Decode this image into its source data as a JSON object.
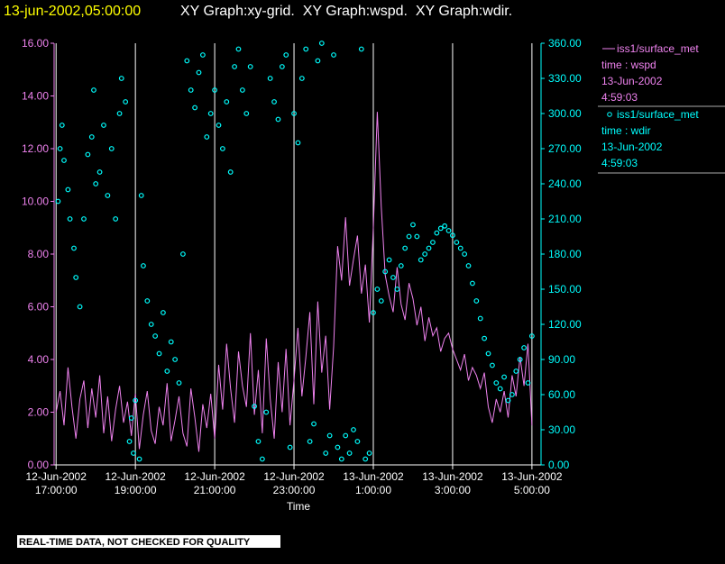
{
  "chart_data": {
    "type": "xy",
    "title_time": "13-jun-2002,05:00:00",
    "title": "XY Graph:xy-grid.  XY Graph:wspd.  XY Graph:wdir.",
    "x_label": "Time",
    "note": "REAL-TIME DATA, NOT CHECKED FOR QUALITY",
    "xlim": [
      -0.05,
      12.23
    ],
    "xticks": [
      {
        "value": 0,
        "label": "12-Jun-2002\n17:00:00"
      },
      {
        "value": 2,
        "label": "12-Jun-2002\n19:00:00"
      },
      {
        "value": 4,
        "label": "12-Jun-2002\n21:00:00"
      },
      {
        "value": 6,
        "label": "12-Jun-2002\n23:00:00"
      },
      {
        "value": 8,
        "label": "13-Jun-2002\n1:00:00"
      },
      {
        "value": 10,
        "label": "13-Jun-2002\n3:00:00"
      },
      {
        "value": 12,
        "label": "13-Jun-2002\n5:00:00"
      }
    ],
    "ylim": [
      0,
      16
    ],
    "yticks": [
      {
        "value": 0,
        "label": "0.00"
      },
      {
        "value": 2,
        "label": "2.00"
      },
      {
        "value": 4,
        "label": "4.00"
      },
      {
        "value": 6,
        "label": "6.00"
      },
      {
        "value": 8,
        "label": "8.00"
      },
      {
        "value": 10,
        "label": "10.00"
      },
      {
        "value": 12,
        "label": "12.00"
      },
      {
        "value": 14,
        "label": "14.00"
      },
      {
        "value": 16,
        "label": "16.00"
      }
    ],
    "y2lim": [
      0,
      360
    ],
    "y2ticks": [
      {
        "value": 0,
        "label": "0.00"
      },
      {
        "value": 30,
        "label": "30.00"
      },
      {
        "value": 60,
        "label": "60.00"
      },
      {
        "value": 90,
        "label": "90.00"
      },
      {
        "value": 120,
        "label": "120.00"
      },
      {
        "value": 150,
        "label": "150.00"
      },
      {
        "value": 180,
        "label": "180.00"
      },
      {
        "value": 210,
        "label": "210.00"
      },
      {
        "value": 240,
        "label": "240.00"
      },
      {
        "value": 270,
        "label": "270.00"
      },
      {
        "value": 300,
        "label": "300.00"
      },
      {
        "value": 330,
        "label": "330.00"
      },
      {
        "value": 360,
        "label": "360.00"
      }
    ],
    "grid": true,
    "series": [
      {
        "name": "iss1/surface_met",
        "kind": "line",
        "color": "#ee82ee",
        "legend_text": [
          "time : wspd",
          "13-Jun-2002",
          "4:59:03"
        ],
        "x": [
          0.0,
          0.1,
          0.2,
          0.3,
          0.4,
          0.5,
          0.6,
          0.7,
          0.8,
          0.9,
          1.0,
          1.1,
          1.2,
          1.3,
          1.4,
          1.5,
          1.6,
          1.7,
          1.8,
          1.9,
          2.0,
          2.1,
          2.2,
          2.3,
          2.4,
          2.5,
          2.6,
          2.7,
          2.8,
          2.9,
          3.0,
          3.1,
          3.2,
          3.3,
          3.4,
          3.5,
          3.6,
          3.7,
          3.8,
          3.9,
          4.0,
          4.1,
          4.2,
          4.3,
          4.4,
          4.5,
          4.6,
          4.7,
          4.8,
          4.9,
          5.0,
          5.1,
          5.2,
          5.3,
          5.4,
          5.5,
          5.6,
          5.7,
          5.8,
          5.9,
          6.0,
          6.1,
          6.2,
          6.3,
          6.4,
          6.5,
          6.6,
          6.7,
          6.8,
          6.9,
          7.0,
          7.1,
          7.2,
          7.3,
          7.4,
          7.5,
          7.6,
          7.7,
          7.8,
          7.9,
          8.0,
          8.1,
          8.2,
          8.3,
          8.4,
          8.5,
          8.6,
          8.7,
          8.8,
          8.9,
          9.0,
          9.1,
          9.2,
          9.3,
          9.4,
          9.5,
          9.6,
          9.7,
          9.8,
          9.9,
          10.0,
          10.1,
          10.2,
          10.3,
          10.4,
          10.5,
          10.6,
          10.7,
          10.8,
          10.9,
          11.0,
          11.1,
          11.2,
          11.3,
          11.4,
          11.5,
          11.6,
          11.7,
          11.8,
          11.9,
          12.0
        ],
        "values": [
          2.0,
          2.8,
          1.5,
          3.7,
          2.2,
          1.0,
          2.5,
          3.2,
          1.4,
          2.9,
          1.8,
          3.4,
          1.2,
          2.6,
          0.9,
          2.1,
          3.0,
          1.6,
          2.4,
          1.1,
          2.7,
          0.6,
          1.9,
          2.8,
          1.3,
          0.8,
          2.2,
          1.5,
          3.1,
          0.9,
          1.7,
          2.6,
          1.2,
          0.7,
          2.9,
          1.8,
          0.5,
          2.3,
          1.4,
          2.7,
          1.0,
          3.8,
          2.1,
          4.6,
          2.9,
          1.6,
          4.3,
          3.0,
          2.2,
          5.0,
          1.9,
          3.6,
          1.2,
          4.8,
          2.5,
          1.0,
          3.9,
          2.0,
          4.4,
          1.5,
          3.2,
          5.2,
          2.6,
          4.1,
          5.8,
          2.3,
          6.2,
          3.5,
          4.9,
          2.1,
          4.5,
          8.3,
          7.0,
          9.4,
          6.8,
          7.8,
          8.7,
          6.5,
          7.6,
          5.4,
          9.0,
          13.4,
          9.8,
          7.2,
          6.4,
          5.8,
          7.5,
          6.1,
          5.5,
          6.9,
          6.3,
          5.3,
          6.0,
          4.7,
          5.6,
          4.9,
          5.2,
          4.3,
          4.8,
          5.0,
          4.4,
          4.0,
          3.6,
          4.2,
          3.2,
          3.7,
          3.4,
          2.9,
          3.5,
          2.2,
          1.6,
          2.5,
          2.0,
          2.8,
          1.8,
          3.4,
          2.6,
          4.1,
          3.0,
          4.6,
          1.5
        ]
      },
      {
        "name": "iss1/surface_met",
        "kind": "scatter",
        "axis": "y2",
        "color": "#00ffff",
        "legend_text": [
          "time : wdir",
          "13-Jun-2002",
          "4:59:03"
        ],
        "x": [
          0.05,
          0.1,
          0.15,
          0.2,
          0.3,
          0.35,
          0.45,
          0.5,
          0.6,
          0.7,
          0.8,
          0.9,
          0.95,
          1.0,
          1.1,
          1.2,
          1.3,
          1.4,
          1.5,
          1.6,
          1.65,
          1.75,
          1.85,
          1.9,
          1.95,
          2.0,
          2.1,
          2.15,
          2.2,
          2.3,
          2.4,
          2.5,
          2.6,
          2.7,
          2.8,
          2.9,
          3.0,
          3.1,
          3.2,
          3.3,
          3.4,
          3.5,
          3.6,
          3.7,
          3.8,
          3.9,
          4.0,
          4.1,
          4.2,
          4.3,
          4.4,
          4.5,
          4.6,
          4.7,
          4.8,
          4.9,
          5.0,
          5.1,
          5.2,
          5.3,
          5.4,
          5.5,
          5.6,
          5.7,
          5.8,
          5.9,
          6.0,
          6.1,
          6.2,
          6.3,
          6.4,
          6.5,
          6.6,
          6.7,
          6.8,
          6.9,
          7.0,
          7.1,
          7.2,
          7.3,
          7.4,
          7.5,
          7.6,
          7.7,
          7.8,
          7.9,
          8.0,
          8.1,
          8.2,
          8.3,
          8.4,
          8.5,
          8.6,
          8.7,
          8.8,
          8.9,
          9.0,
          9.1,
          9.2,
          9.3,
          9.4,
          9.5,
          9.6,
          9.7,
          9.8,
          9.9,
          10.0,
          10.1,
          10.2,
          10.3,
          10.4,
          10.5,
          10.6,
          10.7,
          10.8,
          10.9,
          11.0,
          11.1,
          11.2,
          11.3,
          11.4,
          11.5,
          11.6,
          11.7,
          11.8,
          11.9,
          12.0
        ],
        "values": [
          225,
          270,
          290,
          260,
          235,
          210,
          185,
          160,
          135,
          210,
          265,
          280,
          320,
          240,
          250,
          290,
          230,
          270,
          210,
          300,
          330,
          310,
          20,
          40,
          10,
          55,
          5,
          230,
          170,
          140,
          120,
          110,
          95,
          130,
          80,
          105,
          90,
          70,
          180,
          345,
          320,
          305,
          335,
          350,
          280,
          300,
          320,
          290,
          270,
          310,
          250,
          340,
          355,
          320,
          300,
          340,
          50,
          20,
          5,
          45,
          330,
          310,
          295,
          340,
          350,
          15,
          300,
          275,
          330,
          355,
          20,
          35,
          345,
          360,
          10,
          25,
          350,
          15,
          5,
          25,
          10,
          30,
          20,
          355,
          5,
          10,
          130,
          150,
          140,
          165,
          175,
          160,
          150,
          170,
          185,
          195,
          205,
          195,
          175,
          180,
          185,
          190,
          198,
          202,
          204,
          200,
          196,
          190,
          185,
          180,
          170,
          155,
          140,
          125,
          108,
          95,
          85,
          70,
          65,
          75,
          55,
          60,
          80,
          90,
          100,
          70,
          110
        ]
      }
    ]
  }
}
